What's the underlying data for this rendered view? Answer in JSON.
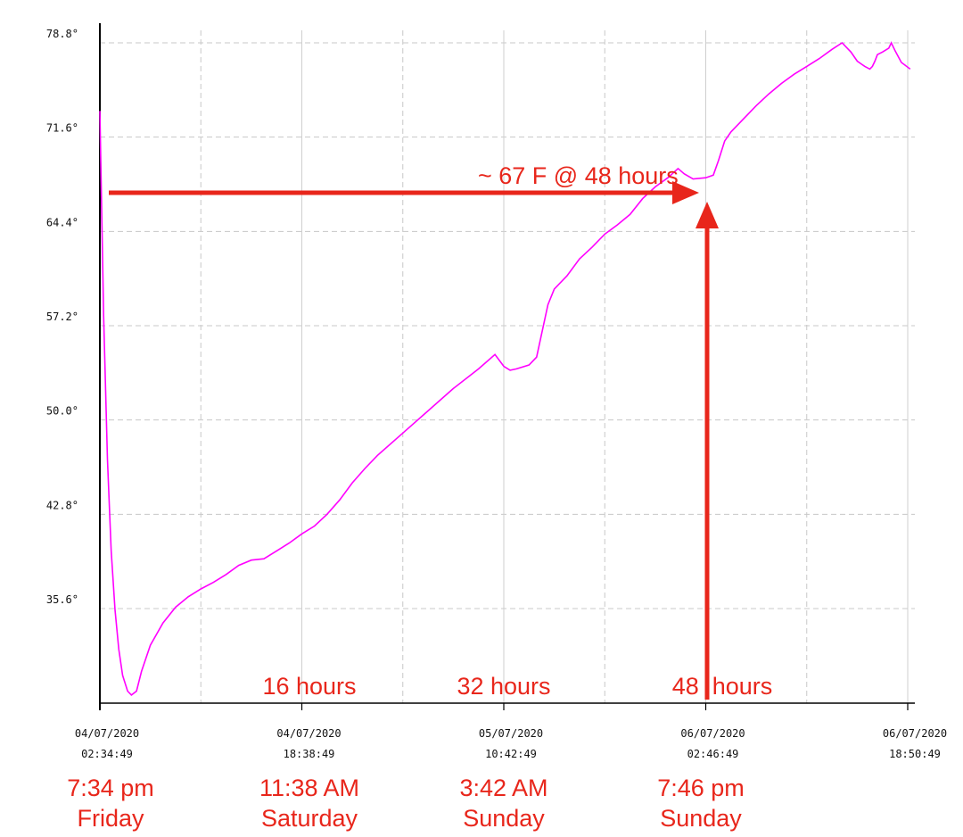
{
  "chart_data": {
    "type": "line",
    "title": "",
    "xlabel": "",
    "ylabel": "",
    "ylim": [
      28.4,
      80.6
    ],
    "yticks": [
      {
        "value": 35.6,
        "label": "35.6°"
      },
      {
        "value": 42.8,
        "label": "42.8°"
      },
      {
        "value": 50.0,
        "label": "50.0°"
      },
      {
        "value": 57.2,
        "label": "57.2°"
      },
      {
        "value": 64.4,
        "label": "64.4°"
      },
      {
        "value": 71.6,
        "label": "71.6°"
      },
      {
        "value": 78.8,
        "label": "78.8°"
      }
    ],
    "xlim_hours": [
      0,
      64.2
    ],
    "xticks": [
      {
        "hours": 0,
        "date": "04/07/2020",
        "time": "02:34:49"
      },
      {
        "hours": 16,
        "date": "04/07/2020",
        "time": "18:38:49"
      },
      {
        "hours": 32,
        "date": "05/07/2020",
        "time": "10:42:49"
      },
      {
        "hours": 48,
        "date": "06/07/2020",
        "time": "02:46:49"
      },
      {
        "hours": 64,
        "date": "06/07/2020",
        "time": "18:50:49"
      }
    ],
    "x_gridlines_hours": [
      0,
      8,
      16,
      24,
      32,
      40,
      48,
      56,
      64
    ],
    "series": [
      {
        "color": "#ff00ff",
        "points": [
          [
            0,
            73.6
          ],
          [
            0.3,
            58
          ],
          [
            0.6,
            47
          ],
          [
            0.9,
            40
          ],
          [
            1.2,
            35.5
          ],
          [
            1.5,
            32.5
          ],
          [
            1.8,
            30.5
          ],
          [
            2.2,
            29.3
          ],
          [
            2.5,
            29.0
          ],
          [
            2.9,
            29.3
          ],
          [
            3.3,
            30.8
          ],
          [
            4,
            32.8
          ],
          [
            5,
            34.5
          ],
          [
            6,
            35.7
          ],
          [
            7,
            36.5
          ],
          [
            8,
            37.1
          ],
          [
            9,
            37.6
          ],
          [
            10,
            38.2
          ],
          [
            11,
            38.9
          ],
          [
            12,
            39.3
          ],
          [
            13,
            39.4
          ],
          [
            14,
            40.0
          ],
          [
            15,
            40.6
          ],
          [
            16,
            41.3
          ],
          [
            17,
            41.9
          ],
          [
            18,
            42.8
          ],
          [
            19,
            43.9
          ],
          [
            20,
            45.2
          ],
          [
            21,
            46.3
          ],
          [
            22,
            47.3
          ],
          [
            24,
            49.0
          ],
          [
            26,
            50.7
          ],
          [
            28,
            52.4
          ],
          [
            30,
            53.9
          ],
          [
            31.3,
            55.0
          ],
          [
            32,
            54.1
          ],
          [
            32.5,
            53.8
          ],
          [
            33,
            53.9
          ],
          [
            34,
            54.2
          ],
          [
            34.6,
            54.8
          ],
          [
            35,
            56.6
          ],
          [
            35.5,
            58.8
          ],
          [
            36,
            60.0
          ],
          [
            37,
            61.0
          ],
          [
            38,
            62.3
          ],
          [
            39,
            63.2
          ],
          [
            40,
            64.2
          ],
          [
            41,
            64.9
          ],
          [
            42,
            65.7
          ],
          [
            43,
            66.9
          ],
          [
            44,
            67.8
          ],
          [
            45,
            68.5
          ],
          [
            45.8,
            69.2
          ],
          [
            46.3,
            68.8
          ],
          [
            47,
            68.4
          ],
          [
            48,
            68.5
          ],
          [
            48.6,
            68.7
          ],
          [
            49,
            69.8
          ],
          [
            49.5,
            71.3
          ],
          [
            50,
            72.0
          ],
          [
            51,
            73.0
          ],
          [
            52,
            74.0
          ],
          [
            53,
            74.9
          ],
          [
            54,
            75.7
          ],
          [
            55,
            76.4
          ],
          [
            56,
            77.0
          ],
          [
            57,
            77.6
          ],
          [
            58,
            78.3
          ],
          [
            58.8,
            78.8
          ],
          [
            59.5,
            78.1
          ],
          [
            60,
            77.4
          ],
          [
            60.3,
            77.2
          ],
          [
            60.6,
            77.0
          ],
          [
            61.0,
            76.8
          ],
          [
            61.2,
            77.0
          ],
          [
            61.4,
            77.4
          ],
          [
            61.6,
            77.9
          ],
          [
            62.0,
            78.1
          ],
          [
            62.5,
            78.4
          ],
          [
            62.7,
            78.8
          ],
          [
            63.0,
            78.2
          ],
          [
            63.5,
            77.3
          ],
          [
            64.2,
            76.8
          ]
        ]
      }
    ],
    "annotations": [
      {
        "text": "~ 67 F @ 48 hours"
      },
      {
        "text": "16 hours"
      },
      {
        "text": "32 hours"
      },
      {
        "text": "48  hours"
      }
    ],
    "day_labels": [
      {
        "time": "7:34 pm",
        "day": "Friday"
      },
      {
        "time": "11:38 AM",
        "day": "Saturday"
      },
      {
        "time": "3:42 AM",
        "day": "Sunday"
      },
      {
        "time": "7:46 pm",
        "day": "Sunday"
      }
    ],
    "colors": {
      "line": "#ff00ff",
      "annotation": "#e8261b",
      "grid": "#c8c8c8",
      "axis": "#000000"
    }
  }
}
